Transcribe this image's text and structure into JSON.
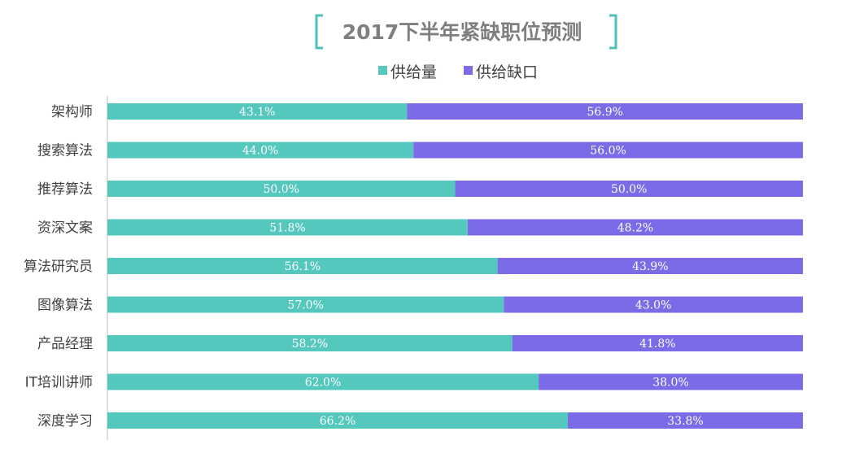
{
  "chart_data": {
    "type": "bar",
    "orientation": "horizontal",
    "stacked": true,
    "title": "2017下半年紧缺职位预测",
    "categories": [
      "架构师",
      "搜索算法",
      "推荐算法",
      "资深文案",
      "算法研究员",
      "图像算法",
      "产品经理",
      "IT培训讲师",
      "深度学习"
    ],
    "series": [
      {
        "name": "供给量",
        "color": "#55c8be",
        "values": [
          43.1,
          44.0,
          50.0,
          51.8,
          56.1,
          57.0,
          58.2,
          62.0,
          66.2
        ],
        "labels": [
          "43.1%",
          "44.0%",
          "50.0%",
          "51.8%",
          "56.1%",
          "57.0%",
          "58.2%",
          "62.0%",
          "66.2%"
        ]
      },
      {
        "name": "供给缺口",
        "color": "#7b6be6",
        "values": [
          56.9,
          56.0,
          50.0,
          48.2,
          43.9,
          43.0,
          41.8,
          38.0,
          33.8
        ],
        "labels": [
          "56.9%",
          "56.0%",
          "50.0%",
          "48.2%",
          "43.9%",
          "43.0%",
          "41.8%",
          "38.0%",
          "33.8%"
        ]
      }
    ],
    "xlim": [
      0,
      100
    ],
    "legend_position": "top",
    "grid": false
  }
}
